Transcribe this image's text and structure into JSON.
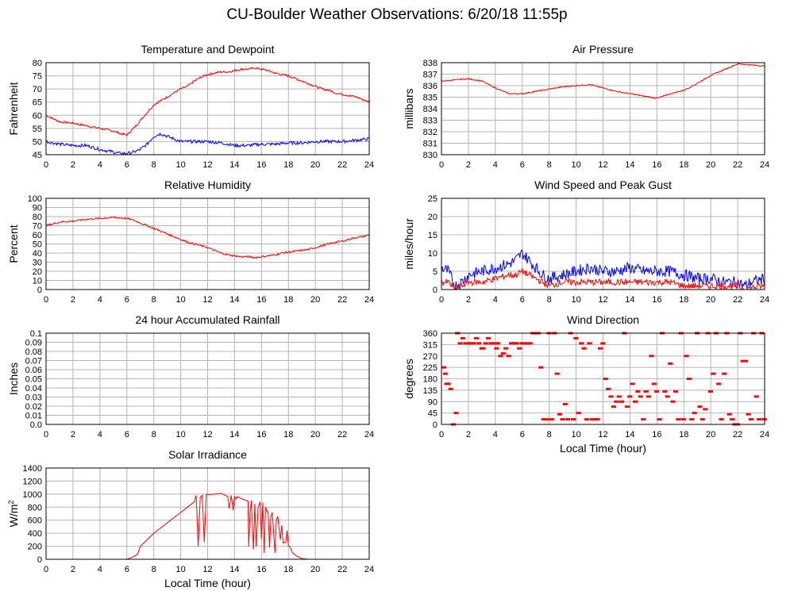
{
  "page_title": "CU-Boulder Weather Observations: 6/20/18 11:55p",
  "chart_data": [
    {
      "id": "temp",
      "type": "line",
      "title": "Temperature and Dewpoint",
      "ylabel": "Fahrenheit",
      "xlabel": "",
      "xlim": [
        0,
        24
      ],
      "ylim": [
        45,
        80
      ],
      "xticks": [
        0,
        2,
        4,
        6,
        8,
        10,
        12,
        14,
        16,
        18,
        20,
        22,
        24
      ],
      "yticks": [
        45,
        50,
        55,
        60,
        65,
        70,
        75,
        80
      ],
      "grid": true,
      "series": [
        {
          "color": "#ff0000",
          "jitter": 0.4,
          "x": [
            0,
            1,
            2,
            3,
            4,
            5,
            5.5,
            6,
            6.5,
            7,
            7.5,
            8,
            8.5,
            9,
            9.5,
            10,
            10.5,
            11,
            11.5,
            12,
            12.5,
            13,
            13.5,
            14,
            14.5,
            15,
            15.5,
            16,
            16.5,
            17,
            17.5,
            18,
            18.5,
            19,
            19.5,
            20,
            20.5,
            21,
            21.5,
            22,
            22.5,
            23,
            23.5,
            24
          ],
          "y": [
            60,
            57.5,
            57,
            56,
            55,
            54,
            53,
            52.5,
            55,
            58,
            61,
            64,
            65.5,
            67,
            68.5,
            70,
            71,
            73,
            74.5,
            75.5,
            76,
            76.5,
            76.5,
            77,
            77.5,
            77.5,
            78,
            77.5,
            77,
            76,
            75.5,
            75,
            74,
            73,
            72,
            71,
            70,
            69.5,
            68.5,
            68,
            67.5,
            67,
            66,
            65
          ]
        },
        {
          "color": "#0000ff",
          "jitter": 0.6,
          "x": [
            0,
            1,
            2,
            3,
            4,
            5,
            5.5,
            6,
            6.5,
            7,
            7.5,
            8,
            8.5,
            9,
            9.5,
            10,
            11,
            12,
            13,
            14,
            15,
            16,
            17,
            18,
            19,
            20,
            21,
            22,
            23,
            24
          ],
          "y": [
            50,
            49,
            48.5,
            48.5,
            47,
            46,
            45.5,
            45.5,
            46,
            47,
            49,
            52,
            53,
            52,
            51,
            50,
            50,
            50,
            49.5,
            48.5,
            48.5,
            49,
            49,
            49.5,
            49.5,
            50,
            50,
            50,
            50.5,
            51
          ]
        }
      ]
    },
    {
      "id": "pressure",
      "type": "line",
      "title": "Air Pressure",
      "ylabel": "millibars",
      "xlabel": "",
      "xlim": [
        0,
        24
      ],
      "ylim": [
        830,
        838
      ],
      "xticks": [
        0,
        2,
        4,
        6,
        8,
        10,
        12,
        14,
        16,
        18,
        20,
        22,
        24
      ],
      "yticks": [
        830,
        831,
        832,
        833,
        834,
        835,
        836,
        837,
        838
      ],
      "grid": true,
      "series": [
        {
          "color": "#ff0000",
          "jitter": 0.05,
          "x": [
            0,
            1,
            2,
            3,
            4,
            5,
            6,
            7,
            8,
            9,
            10,
            11,
            12,
            13,
            14,
            15,
            16,
            17,
            18,
            19,
            20,
            21,
            22,
            23,
            24
          ],
          "y": [
            836.4,
            836.5,
            836.6,
            836.4,
            835.8,
            835.3,
            835.3,
            835.5,
            835.7,
            835.9,
            836.0,
            836.1,
            835.8,
            835.5,
            835.3,
            835.1,
            834.9,
            835.3,
            835.6,
            836.2,
            836.9,
            837.4,
            837.9,
            837.8,
            837.7
          ]
        }
      ]
    },
    {
      "id": "humidity",
      "type": "line",
      "title": "Relative Humidity",
      "ylabel": "Percent",
      "xlabel": "",
      "xlim": [
        0,
        24
      ],
      "ylim": [
        0,
        100
      ],
      "xticks": [
        0,
        2,
        4,
        6,
        8,
        10,
        12,
        14,
        16,
        18,
        20,
        22,
        24
      ],
      "yticks": [
        0,
        10,
        20,
        30,
        40,
        50,
        60,
        70,
        80,
        90,
        100
      ],
      "grid": true,
      "series": [
        {
          "color": "#ff0000",
          "jitter": 1.0,
          "x": [
            0,
            1,
            2,
            3,
            4,
            5,
            6,
            6.5,
            7,
            7.5,
            8,
            8.5,
            9,
            9.5,
            10,
            10.5,
            11,
            11.5,
            12,
            12.5,
            13,
            13.5,
            14,
            14.5,
            15,
            15.5,
            16,
            16.5,
            17,
            17.5,
            18,
            18.5,
            19,
            19.5,
            20,
            20.5,
            21,
            21.5,
            22,
            22.5,
            23,
            23.5,
            24
          ],
          "y": [
            70,
            74,
            75,
            77,
            78,
            79,
            78,
            76,
            73,
            70,
            67,
            64,
            61,
            58,
            55,
            52,
            50,
            48,
            46,
            43,
            40,
            38,
            37,
            36,
            36,
            35,
            36,
            37,
            38,
            40,
            41,
            42,
            43,
            44,
            46,
            48,
            50,
            52,
            53,
            55,
            57,
            58,
            60
          ]
        }
      ]
    },
    {
      "id": "wind",
      "type": "line",
      "title": "Wind Speed and Peak Gust",
      "ylabel": "miles/hour",
      "xlabel": "",
      "xlim": [
        0,
        24
      ],
      "ylim": [
        0,
        25
      ],
      "xticks": [
        0,
        2,
        4,
        6,
        8,
        10,
        12,
        14,
        16,
        18,
        20,
        22,
        24
      ],
      "yticks": [
        0,
        5,
        10,
        15,
        20,
        25
      ],
      "grid": true,
      "series": [
        {
          "color": "#0000ff",
          "jitter": 1.6,
          "x": [
            0,
            0.5,
            1,
            1.5,
            2,
            3,
            4,
            5,
            5.5,
            6,
            6.5,
            7,
            7.5,
            8,
            9,
            10,
            11,
            12,
            13,
            14,
            15,
            16,
            17,
            18,
            19,
            20,
            21,
            22,
            22.5,
            23,
            24
          ],
          "y": [
            6,
            5,
            1,
            2,
            4,
            5,
            6,
            7,
            8,
            10,
            8,
            6,
            4,
            3,
            4,
            5,
            6,
            5,
            5,
            6,
            5,
            5,
            5,
            4,
            3,
            3,
            2,
            2,
            1,
            2,
            3
          ]
        },
        {
          "color": "#ff0000",
          "jitter": 0.9,
          "x": [
            0,
            0.5,
            1,
            1.5,
            2,
            3,
            4,
            5,
            5.5,
            6,
            6.5,
            7,
            7.5,
            8,
            9,
            10,
            11,
            12,
            13,
            14,
            15,
            16,
            17,
            18,
            19,
            20,
            21,
            22,
            22.5,
            23,
            24
          ],
          "y": [
            2,
            2,
            0,
            1,
            2,
            2,
            3,
            4,
            4,
            5,
            4,
            3,
            2,
            1,
            2,
            2,
            2,
            2,
            2,
            2,
            2,
            2,
            2,
            1,
            1,
            1,
            1,
            1,
            0,
            0.5,
            1
          ]
        }
      ]
    },
    {
      "id": "rain",
      "type": "line",
      "title": "24 hour Accumulated Rainfall",
      "ylabel": "Inches",
      "xlabel": "",
      "xlim": [
        0,
        24
      ],
      "ylim": [
        0,
        0.1
      ],
      "xticks": [
        0,
        2,
        4,
        6,
        8,
        10,
        12,
        14,
        16,
        18,
        20,
        22,
        24
      ],
      "yticks": [
        0.0,
        0.01,
        0.02,
        0.03,
        0.04,
        0.05,
        0.06,
        0.07,
        0.08,
        0.09,
        0.1
      ],
      "ytick_labels": [
        "0.0",
        "0.01",
        "0.02",
        "0.03",
        "0.04",
        "0.05",
        "0.06",
        "0.07",
        "0.08",
        "0.09",
        "0.1"
      ],
      "grid": true,
      "series": [
        {
          "color": "#ff0000",
          "jitter": 0,
          "x": [
            0,
            24
          ],
          "y": [
            0,
            0
          ]
        }
      ]
    },
    {
      "id": "winddir",
      "type": "scatter",
      "title": "Wind Direction",
      "ylabel": "degrees",
      "xlabel": "Local Time (hour)",
      "xlim": [
        0,
        24
      ],
      "ylim": [
        0,
        360
      ],
      "xticks": [
        0,
        2,
        4,
        6,
        8,
        10,
        12,
        14,
        16,
        18,
        20,
        22,
        24
      ],
      "yticks": [
        0,
        45,
        90,
        135,
        180,
        225,
        270,
        315,
        360
      ],
      "grid": true,
      "series": [
        {
          "color": "#ff0000",
          "x": [
            0.1,
            0.2,
            0.3,
            0.4,
            0.6,
            0.8,
            1.0,
            1.1,
            1.3,
            1.5,
            1.7,
            1.9,
            2.1,
            2.3,
            2.5,
            2.7,
            2.9,
            3.0,
            3.2,
            3.4,
            3.6,
            3.8,
            4.0,
            4.1,
            4.3,
            4.5,
            4.7,
            4.9,
            5.1,
            5.3,
            5.5,
            5.7,
            5.9,
            6.1,
            6.3,
            6.5,
            6.7,
            6.9,
            7.1,
            7.3,
            7.5,
            7.7,
            7.9,
            8.1,
            8.3,
            8.5,
            8.7,
            8.9,
            9.1,
            9.3,
            9.5,
            9.7,
            9.9,
            10.1,
            10.3,
            10.5,
            10.7,
            10.9,
            11.1,
            11.3,
            11.5,
            11.7,
            11.9,
            12.1,
            12.3,
            12.5,
            12.7,
            12.9,
            13.1,
            13.3,
            13.5,
            13.7,
            13.9,
            14.1,
            14.3,
            14.5,
            14.7,
            14.9,
            15.1,
            15.3,
            15.5,
            15.7,
            15.9,
            16.1,
            16.3,
            16.5,
            16.7,
            16.9,
            17.1,
            17.3,
            17.5,
            17.7,
            17.9,
            18.1,
            18.3,
            18.5,
            18.7,
            18.9,
            19.1,
            19.3,
            19.5,
            19.7,
            19.9,
            20.1,
            20.3,
            20.5,
            20.7,
            20.9,
            21.1,
            21.3,
            21.5,
            21.7,
            21.9,
            22.1,
            22.3,
            22.5,
            22.7,
            22.9,
            23.1,
            23.3,
            23.5,
            23.7,
            23.9
          ],
          "y": [
            225,
            200,
            160,
            160,
            140,
            0,
            45,
            360,
            320,
            340,
            320,
            320,
            320,
            320,
            340,
            320,
            300,
            300,
            320,
            340,
            320,
            320,
            300,
            320,
            270,
            280,
            300,
            270,
            320,
            320,
            320,
            300,
            320,
            320,
            320,
            320,
            360,
            360,
            360,
            225,
            20,
            20,
            360,
            20,
            360,
            200,
            40,
            20,
            80,
            20,
            360,
            20,
            340,
            45,
            320,
            300,
            20,
            320,
            20,
            20,
            20,
            300,
            320,
            180,
            140,
            110,
            70,
            90,
            110,
            90,
            360,
            70,
            110,
            160,
            90,
            130,
            110,
            20,
            130,
            110,
            270,
            160,
            130,
            20,
            360,
            130,
            110,
            240,
            90,
            130,
            20,
            360,
            20,
            270,
            180,
            20,
            45,
            360,
            70,
            20,
            60,
            360,
            130,
            200,
            360,
            160,
            20,
            200,
            360,
            40,
            20,
            0,
            0,
            360,
            250,
            250,
            40,
            20,
            360,
            110,
            20,
            360,
            20
          ]
        }
      ]
    },
    {
      "id": "solar",
      "type": "line",
      "title": "Solar Irradiance",
      "ylabel": "W/m",
      "ylabel_sup": "2",
      "xlabel": "Local Time (hour)",
      "xlim": [
        0,
        24
      ],
      "ylim": [
        0,
        1400
      ],
      "xticks": [
        0,
        2,
        4,
        6,
        8,
        10,
        12,
        14,
        16,
        18,
        20,
        22,
        24
      ],
      "yticks": [
        0,
        200,
        400,
        600,
        800,
        1000,
        1200,
        1400
      ],
      "grid": true,
      "series": [
        {
          "color": "#ff0000",
          "jitter": 0,
          "x": [
            0,
            5.5,
            6,
            6.5,
            6.8,
            7,
            7.5,
            8,
            8.5,
            9,
            9.5,
            10,
            10.5,
            11,
            11.15,
            11.3,
            11.45,
            11.6,
            11.75,
            11.9,
            12.1,
            12.5,
            13,
            13.5,
            13.6,
            13.75,
            13.9,
            14,
            14.1,
            14.2,
            14.5,
            15,
            15.05,
            15.15,
            15.25,
            15.4,
            15.5,
            15.6,
            15.75,
            15.9,
            16.0,
            16.1,
            16.2,
            16.3,
            16.5,
            16.6,
            16.7,
            16.8,
            17.0,
            17.1,
            17.2,
            17.4,
            17.5,
            17.6,
            17.8,
            17.9,
            18.0,
            18.1,
            18.3,
            18.6,
            19,
            19.5,
            20,
            24
          ],
          "y": [
            0,
            0,
            0,
            40,
            80,
            200,
            300,
            400,
            480,
            560,
            640,
            720,
            800,
            880,
            980,
            200,
            950,
            980,
            260,
            1000,
            990,
            1000,
            1010,
            960,
            780,
            980,
            750,
            970,
            920,
            960,
            930,
            890,
            200,
            700,
            900,
            150,
            850,
            200,
            800,
            880,
            300,
            870,
            100,
            800,
            700,
            180,
            650,
            720,
            100,
            600,
            660,
            300,
            520,
            250,
            260,
            440,
            200,
            200,
            100,
            50,
            10,
            0,
            0,
            0
          ]
        }
      ]
    }
  ]
}
